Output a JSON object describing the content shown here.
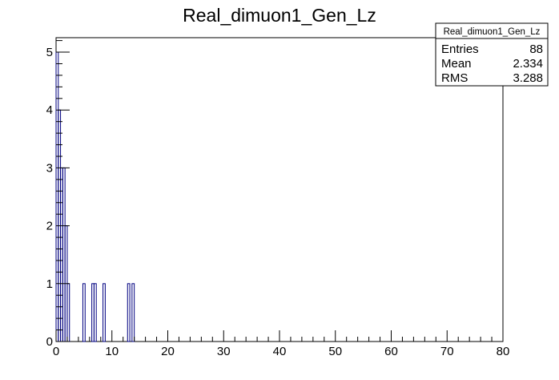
{
  "chart_data": {
    "type": "bar",
    "title": "Real_dimuon1_Gen_Lz",
    "xlabel": "",
    "ylabel": "",
    "xlim": [
      0,
      80
    ],
    "ylim": [
      0,
      5.25
    ],
    "bin_width": 0.4,
    "x_ticks": [
      0,
      10,
      20,
      30,
      40,
      50,
      60,
      70,
      80
    ],
    "y_ticks": [
      0,
      1,
      2,
      3,
      4,
      5
    ],
    "bins": [
      {
        "x": 0.0,
        "value": 5
      },
      {
        "x": 0.4,
        "value": 4
      },
      {
        "x": 0.8,
        "value": 3
      },
      {
        "x": 1.2,
        "value": 3
      },
      {
        "x": 1.6,
        "value": 2
      },
      {
        "x": 2.0,
        "value": 1
      },
      {
        "x": 4.8,
        "value": 1
      },
      {
        "x": 6.4,
        "value": 1
      },
      {
        "x": 6.8,
        "value": 1
      },
      {
        "x": 8.4,
        "value": 1
      },
      {
        "x": 12.8,
        "value": 1
      },
      {
        "x": 13.6,
        "value": 1
      }
    ],
    "line_color": "#000080",
    "grid": false
  },
  "stats_box": {
    "title": "Real_dimuon1_Gen_Lz",
    "rows": [
      {
        "label": "Entries",
        "value": "88"
      },
      {
        "label": "Mean",
        "value": "2.334"
      },
      {
        "label": "RMS",
        "value": "3.288"
      }
    ]
  }
}
